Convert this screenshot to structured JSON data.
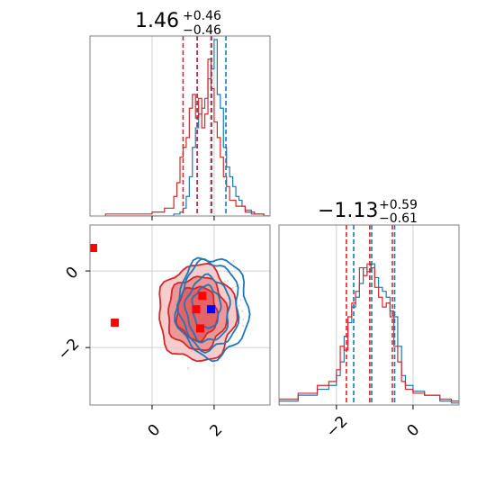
{
  "chart_data": {
    "type": "corner",
    "colors": {
      "series_a": "#1f77b4",
      "series_b": "#d62728",
      "marker_blue": "#0000ff",
      "marker_red": "#ff0000",
      "grid": "#d0d0d0",
      "frame": "#808080"
    },
    "grid": true,
    "params": [
      {
        "title": {
          "median": "1.46",
          "upper": "+0.46",
          "lower": "−0.46"
        },
        "range": [
          -2.0,
          3.8
        ],
        "ticks": [
          {
            "v": 0,
            "label": "0"
          },
          {
            "v": 2,
            "label": "2"
          }
        ],
        "quantiles_a": [
          1.45,
          1.9,
          2.38
        ],
        "quantiles_b": [
          1.0,
          1.46,
          1.92
        ]
      },
      {
        "title": {
          "median": "−1.13",
          "upper": "+0.59",
          "lower": "−0.61"
        },
        "range": [
          -3.5,
          1.2
        ],
        "ticks": [
          {
            "v": -2,
            "label": "−2"
          },
          {
            "v": 0,
            "label": "0"
          }
        ],
        "quantiles_a": [
          -1.55,
          -1.08,
          -0.48
        ],
        "quantiles_b": [
          -1.74,
          -1.13,
          -0.54
        ]
      }
    ],
    "hist_a": {
      "x": [
        -1.5,
        -1.0,
        -0.5,
        0.0,
        0.4,
        0.7,
        0.9,
        1.0,
        1.1,
        1.2,
        1.3,
        1.4,
        1.5,
        1.6,
        1.7,
        1.8,
        1.9,
        2.0,
        2.1,
        2.2,
        2.3,
        2.4,
        2.5,
        2.6,
        2.7,
        2.8,
        2.9,
        3.0,
        3.2,
        3.4,
        3.6
      ],
      "density": [
        0.0,
        0.0,
        0.0,
        0.0,
        0.0,
        0.01,
        0.02,
        0.04,
        0.1,
        0.2,
        0.35,
        0.45,
        0.52,
        0.55,
        0.6,
        0.7,
        0.75,
        0.9,
        0.62,
        0.55,
        0.35,
        0.25,
        0.2,
        0.15,
        0.1,
        0.08,
        0.05,
        0.03,
        0.01,
        0.01,
        0.0
      ]
    },
    "hist_b": {
      "x": [
        -1.5,
        -1.0,
        -0.5,
        0.0,
        0.4,
        0.7,
        0.8,
        0.9,
        1.0,
        1.1,
        1.2,
        1.3,
        1.4,
        1.5,
        1.6,
        1.7,
        1.8,
        1.9,
        2.0,
        2.1,
        2.2,
        2.3,
        2.4,
        2.5,
        2.7,
        3.0,
        3.3,
        3.6
      ],
      "density": [
        0.01,
        0.01,
        0.01,
        0.02,
        0.04,
        0.1,
        0.17,
        0.3,
        0.35,
        0.4,
        0.55,
        0.62,
        0.5,
        0.6,
        0.45,
        0.52,
        0.8,
        0.65,
        0.48,
        0.4,
        0.3,
        0.2,
        0.15,
        0.08,
        0.05,
        0.02,
        0.01,
        0.0
      ]
    },
    "hist2_a": {
      "x": [
        -3.5,
        -3.0,
        -2.5,
        -2.2,
        -2.0,
        -1.9,
        -1.8,
        -1.7,
        -1.6,
        -1.5,
        -1.4,
        -1.3,
        -1.2,
        -1.1,
        -1.0,
        -0.9,
        -0.8,
        -0.7,
        -0.6,
        -0.5,
        -0.4,
        -0.3,
        -0.2,
        0.0,
        0.3,
        0.7,
        1.0
      ],
      "density": [
        0.02,
        0.05,
        0.08,
        0.1,
        0.15,
        0.22,
        0.35,
        0.42,
        0.5,
        0.55,
        0.62,
        0.7,
        0.68,
        0.72,
        0.65,
        0.6,
        0.58,
        0.55,
        0.48,
        0.45,
        0.3,
        0.15,
        0.1,
        0.07,
        0.05,
        0.02,
        0.01
      ]
    },
    "hist2_b": {
      "x": [
        -3.5,
        -3.0,
        -2.5,
        -2.2,
        -2.0,
        -1.9,
        -1.8,
        -1.7,
        -1.6,
        -1.5,
        -1.4,
        -1.3,
        -1.2,
        -1.1,
        -1.0,
        -0.9,
        -0.8,
        -0.7,
        -0.6,
        -0.5,
        -0.4,
        -0.3,
        -0.2,
        0.0,
        0.3,
        0.7,
        1.0
      ],
      "density": [
        0.03,
        0.06,
        0.1,
        0.12,
        0.18,
        0.3,
        0.28,
        0.45,
        0.52,
        0.58,
        0.7,
        0.66,
        0.72,
        0.7,
        0.6,
        0.55,
        0.5,
        0.52,
        0.45,
        0.3,
        0.22,
        0.12,
        0.08,
        0.06,
        0.05,
        0.03,
        0.02
      ]
    },
    "contours_a": [
      {
        "cx": 1.95,
        "cy": -0.95,
        "rx": 1.15,
        "ry": 1.3
      },
      {
        "cx": 1.85,
        "cy": -0.9,
        "rx": 0.95,
        "ry": 1.15
      },
      {
        "cx": 1.8,
        "cy": -1.0,
        "rx": 0.7,
        "ry": 0.85
      },
      {
        "cx": 1.75,
        "cy": -0.95,
        "rx": 0.45,
        "ry": 0.55
      }
    ],
    "contours_b": [
      {
        "cx": 1.45,
        "cy": -1.1,
        "rx": 1.25,
        "ry": 1.25
      },
      {
        "cx": 1.45,
        "cy": -1.1,
        "rx": 0.95,
        "ry": 0.95
      },
      {
        "cx": 1.45,
        "cy": -1.1,
        "rx": 0.65,
        "ry": 0.7
      }
    ],
    "markers_red": [
      [
        -1.9,
        0.6
      ],
      [
        -1.2,
        -1.35
      ],
      [
        1.62,
        -0.65
      ],
      [
        1.42,
        -1.0
      ],
      [
        1.55,
        -1.5
      ]
    ],
    "markers_blue": [
      [
        1.9,
        -1.0
      ]
    ]
  }
}
